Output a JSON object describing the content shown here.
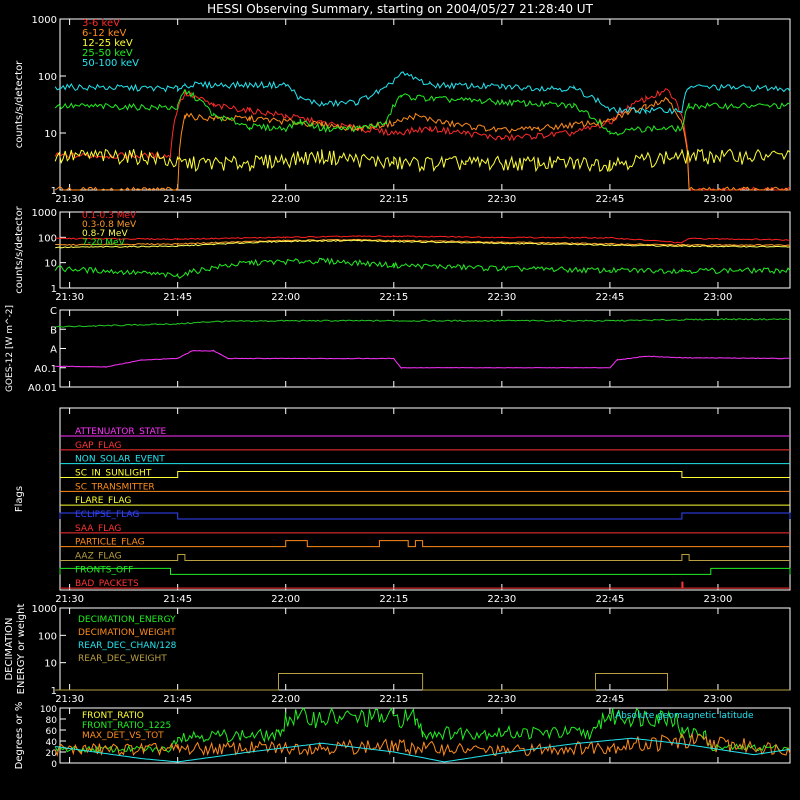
{
  "title": "HESSI Observing Summary, starting on 2004/05/27 21:28:40 UT",
  "time_labels": [
    "21:30",
    "21:45",
    "22:00",
    "22:15",
    "22:30",
    "22:45",
    "23:00"
  ],
  "colors": {
    "3-6": "#ff2a2a",
    "6-12": "#ff8c1a",
    "12-25": "#ffff33",
    "25-50": "#22ee22",
    "50-100": "#22e6f0",
    "hi1": "#ff2020",
    "hi2": "#ff9a2a",
    "hi3": "#ffff55",
    "hi4": "#22ee22",
    "goes_long": "#22cc22",
    "goes_short": "#ff33ff",
    "magenta": "#ff33ff",
    "red": "#ff3333",
    "cyan": "#22e6f0",
    "yellow": "#ffff33",
    "orange": "#ff8c1a",
    "blue": "#3344ff",
    "green": "#22ee22",
    "olive": "#b8a040"
  },
  "chart_data": [
    {
      "type": "line",
      "ylabel": "counts/s/detector",
      "yscale": "log",
      "ylim": [
        1,
        1000
      ],
      "ytick_labels": [
        "1",
        "10",
        "100",
        "1000"
      ],
      "xlim": [
        "21:28:40",
        "23:10:00"
      ],
      "legend": [
        "3-6 keV",
        "6-12 keV",
        "12-25 keV",
        "25-50 keV",
        "50-100 keV"
      ],
      "series": [
        {
          "name": "3-6 keV",
          "color_key": "3-6",
          "points": [
            [
              "21:28",
              4
            ],
            [
              "21:44",
              4
            ],
            [
              "21:46",
              50
            ],
            [
              "21:50",
              30
            ],
            [
              "21:55",
              25
            ],
            [
              "22:00",
              20
            ],
            [
              "22:05",
              15
            ],
            [
              "22:10",
              12
            ],
            [
              "22:15",
              10
            ],
            [
              "22:20",
              12
            ],
            [
              "22:25",
              10
            ],
            [
              "22:30",
              8
            ],
            [
              "22:35",
              9
            ],
            [
              "22:40",
              10
            ],
            [
              "22:45",
              15
            ],
            [
              "22:50",
              40
            ],
            [
              "22:53",
              55
            ],
            [
              "22:56",
              1
            ],
            [
              "23:10",
              1
            ]
          ]
        },
        {
          "name": "6-12 keV",
          "color_key": "6-12",
          "points": [
            [
              "21:28",
              1
            ],
            [
              "21:45",
              1
            ],
            [
              "21:46",
              20
            ],
            [
              "21:50",
              18
            ],
            [
              "21:55",
              18
            ],
            [
              "22:00",
              16
            ],
            [
              "22:05",
              14
            ],
            [
              "22:10",
              12
            ],
            [
              "22:15",
              15
            ],
            [
              "22:18",
              20
            ],
            [
              "22:22",
              15
            ],
            [
              "22:30",
              11
            ],
            [
              "22:35",
              12
            ],
            [
              "22:40",
              14
            ],
            [
              "22:45",
              16
            ],
            [
              "22:50",
              30
            ],
            [
              "22:53",
              40
            ],
            [
              "22:56",
              1
            ],
            [
              "23:10",
              1
            ]
          ]
        },
        {
          "name": "12-25 keV",
          "color_key": "12-25",
          "points": [
            [
              "21:28",
              4
            ],
            [
              "21:40",
              4
            ],
            [
              "21:45",
              3
            ],
            [
              "21:55",
              3
            ],
            [
              "22:05",
              4
            ],
            [
              "22:15",
              3
            ],
            [
              "22:25",
              3
            ],
            [
              "22:35",
              3
            ],
            [
              "22:45",
              3
            ],
            [
              "22:55",
              4
            ],
            [
              "23:10",
              4
            ]
          ]
        },
        {
          "name": "25-50 keV",
          "color_key": "25-50",
          "points": [
            [
              "21:28",
              30
            ],
            [
              "21:45",
              28
            ],
            [
              "21:46",
              55
            ],
            [
              "21:50",
              20
            ],
            [
              "21:55",
              13
            ],
            [
              "22:00",
              12
            ],
            [
              "22:02",
              16
            ],
            [
              "22:05",
              12
            ],
            [
              "22:10",
              12
            ],
            [
              "22:14",
              15
            ],
            [
              "22:16",
              45
            ],
            [
              "22:20",
              40
            ],
            [
              "22:30",
              35
            ],
            [
              "22:40",
              30
            ],
            [
              "22:45",
              10
            ],
            [
              "22:50",
              12
            ],
            [
              "22:55",
              12
            ],
            [
              "22:56",
              30
            ],
            [
              "23:10",
              30
            ]
          ]
        },
        {
          "name": "50-100 keV",
          "color_key": "50-100",
          "points": [
            [
              "21:28",
              65
            ],
            [
              "21:45",
              60
            ],
            [
              "21:46",
              70
            ],
            [
              "21:55",
              70
            ],
            [
              "22:00",
              70
            ],
            [
              "22:02",
              40
            ],
            [
              "22:05",
              32
            ],
            [
              "22:10",
              35
            ],
            [
              "22:14",
              60
            ],
            [
              "22:16",
              110
            ],
            [
              "22:20",
              70
            ],
            [
              "22:30",
              65
            ],
            [
              "22:40",
              60
            ],
            [
              "22:45",
              25
            ],
            [
              "22:50",
              25
            ],
            [
              "22:55",
              25
            ],
            [
              "22:56",
              65
            ],
            [
              "23:10",
              60
            ]
          ]
        }
      ]
    },
    {
      "type": "line",
      "ylabel": "counts/s/detector",
      "yscale": "log",
      "ylim": [
        1,
        1000
      ],
      "ytick_labels": [
        "1",
        "10",
        "100",
        "1000"
      ],
      "legend": [
        "0.1-0.3 MeV",
        "0.3-0.8 MeV",
        "0.8-7 MeV",
        "7-20 MeV"
      ],
      "series": [
        {
          "name": "0.1-0.3 MeV",
          "color_key": "hi1",
          "points": [
            [
              "21:28",
              90
            ],
            [
              "21:45",
              85
            ],
            [
              "22:00",
              100
            ],
            [
              "22:10",
              110
            ],
            [
              "22:15",
              110
            ],
            [
              "22:30",
              100
            ],
            [
              "22:45",
              95
            ],
            [
              "22:55",
              60
            ],
            [
              "22:56",
              90
            ],
            [
              "23:10",
              80
            ]
          ]
        },
        {
          "name": "0.3-0.8 MeV",
          "color_key": "hi2",
          "points": [
            [
              "21:28",
              50
            ],
            [
              "21:45",
              55
            ],
            [
              "22:00",
              75
            ],
            [
              "22:10",
              80
            ],
            [
              "22:15",
              75
            ],
            [
              "22:30",
              65
            ],
            [
              "22:45",
              55
            ],
            [
              "22:55",
              50
            ],
            [
              "23:10",
              50
            ]
          ]
        },
        {
          "name": "0.8-7 MeV",
          "color_key": "hi3",
          "points": [
            [
              "21:28",
              40
            ],
            [
              "21:45",
              45
            ],
            [
              "22:00",
              70
            ],
            [
              "22:10",
              75
            ],
            [
              "22:15",
              68
            ],
            [
              "22:30",
              58
            ],
            [
              "22:45",
              50
            ],
            [
              "22:55",
              45
            ],
            [
              "23:10",
              42
            ]
          ]
        },
        {
          "name": "7-20 MeV",
          "color_key": "hi4",
          "points": [
            [
              "21:28",
              6
            ],
            [
              "21:45",
              3
            ],
            [
              "21:55",
              10
            ],
            [
              "22:05",
              12
            ],
            [
              "22:15",
              8
            ],
            [
              "22:30",
              6
            ],
            [
              "22:45",
              5
            ],
            [
              "22:55",
              5
            ],
            [
              "23:10",
              5
            ]
          ]
        }
      ]
    },
    {
      "type": "line",
      "ylabel": "GOES-12 [W m^-2]",
      "ytick_labels": [
        "C",
        "B",
        "A",
        "A0.1",
        "A0.01"
      ],
      "series": [
        {
          "name": "long",
          "color_key": "goes_long",
          "points": [
            [
              "21:28",
              0.78
            ],
            [
              "21:45",
              0.82
            ],
            [
              "21:50",
              0.85
            ],
            [
              "22:00",
              0.86
            ],
            [
              "22:15",
              0.86
            ],
            [
              "22:45",
              0.86
            ],
            [
              "23:00",
              0.88
            ],
            [
              "23:10",
              0.88
            ]
          ]
        },
        {
          "name": "short",
          "color_key": "goes_short",
          "points": [
            [
              "21:28",
              0.27
            ],
            [
              "21:35",
              0.26
            ],
            [
              "21:40",
              0.35
            ],
            [
              "21:45",
              0.37
            ],
            [
              "21:47",
              0.47
            ],
            [
              "21:50",
              0.47
            ],
            [
              "21:52",
              0.37
            ],
            [
              "22:15",
              0.37
            ],
            [
              "22:16",
              0.25
            ],
            [
              "22:45",
              0.25
            ],
            [
              "22:46",
              0.35
            ],
            [
              "22:50",
              0.4
            ],
            [
              "22:55",
              0.38
            ],
            [
              "23:10",
              0.37
            ]
          ]
        }
      ]
    },
    {
      "type": "flags",
      "ylabel": "Flags",
      "flags": [
        {
          "name": "ATTENUATOR_STATE",
          "color_key": "magenta",
          "segments": []
        },
        {
          "name": "GAP_FLAG",
          "color_key": "red",
          "segments": []
        },
        {
          "name": "NON_SOLAR_EVENT",
          "color_key": "cyan",
          "segments": []
        },
        {
          "name": "SC_IN_SUNLIGHT",
          "color_key": "yellow",
          "segments": [
            [
              "21:45",
              "22:55"
            ]
          ]
        },
        {
          "name": "SC_TRANSMITTER",
          "color_key": "orange",
          "segments": []
        },
        {
          "name": "FLARE_FLAG",
          "color_key": "yellow",
          "segments": []
        },
        {
          "name": "ECLIPSE_FLAG",
          "color_key": "blue",
          "segments": [
            [
              "21:28",
              "21:45"
            ],
            [
              "22:55",
              "23:10"
            ]
          ]
        },
        {
          "name": "SAA_FLAG",
          "color_key": "red",
          "segments": []
        },
        {
          "name": "PARTICLE_FLAG",
          "color_key": "orange",
          "segments": [
            [
              "22:00",
              "22:03"
            ],
            [
              "22:13",
              "22:17"
            ],
            [
              "22:18",
              "22:19"
            ]
          ]
        },
        {
          "name": "AAZ_FLAG",
          "color_key": "olive",
          "segments": [
            [
              "21:45",
              "21:46"
            ],
            [
              "22:55",
              "22:56"
            ]
          ]
        },
        {
          "name": "FRONTS_OFF",
          "color_key": "green",
          "segments": [
            [
              "21:28",
              "21:44"
            ],
            [
              "22:59",
              "23:10"
            ]
          ]
        },
        {
          "name": "BAD_PACKETS",
          "color_key": "red",
          "segments": [
            [
              "22:55",
              "22:55"
            ]
          ]
        }
      ]
    },
    {
      "type": "line",
      "ylabel": "DECIMATION ENERGY or weight",
      "yscale": "log",
      "ylim": [
        1,
        1000
      ],
      "ytick_labels": [
        "1",
        "10",
        "100",
        "1000"
      ],
      "legend": [
        "DECIMATION_ENERGY",
        "DECIMATION_WEIGHT",
        "REAR_DEC_CHAN/128",
        "REAR_DEC_WEIGHT"
      ],
      "series": [
        {
          "name": "REAR_DEC_WEIGHT",
          "color_key": "olive",
          "points": [
            [
              "21:28",
              1
            ],
            [
              "21:59",
              1
            ],
            [
              "21:59",
              4
            ],
            [
              "22:19",
              4
            ],
            [
              "22:19",
              1
            ],
            [
              "22:43",
              1
            ],
            [
              "22:43",
              4
            ],
            [
              "22:53",
              4
            ],
            [
              "22:53",
              1
            ],
            [
              "23:10",
              1
            ]
          ]
        }
      ]
    },
    {
      "type": "line",
      "ylabel": "Degrees or %",
      "ylim": [
        0,
        100
      ],
      "ytick_labels": [
        "0",
        "20",
        "40",
        "60",
        "80",
        "100"
      ],
      "legend": [
        "FRONT_RATIO",
        "FRONT_RATIO_1225",
        "MAX_DET_VS_TOT"
      ],
      "annotation": "Absolute geomagnetic latitude",
      "series": [
        {
          "name": "FRONT_RATIO_1225",
          "color_key": "green",
          "points": [
            [
              "21:28",
              25
            ],
            [
              "21:44",
              25
            ],
            [
              "21:45",
              50
            ],
            [
              "21:59",
              50
            ],
            [
              "22:00",
              82
            ],
            [
              "22:18",
              82
            ],
            [
              "22:19",
              55
            ],
            [
              "22:43",
              55
            ],
            [
              "22:44",
              85
            ],
            [
              "22:54",
              85
            ],
            [
              "22:55",
              55
            ],
            [
              "22:58",
              55
            ],
            [
              "22:59",
              28
            ],
            [
              "23:10",
              28
            ]
          ]
        },
        {
          "name": "MAX_DET_VS_TOT",
          "color_key": "orange",
          "points": [
            [
              "21:28",
              25
            ],
            [
              "21:45",
              25
            ],
            [
              "22:00",
              28
            ],
            [
              "22:15",
              30
            ],
            [
              "22:30",
              22
            ],
            [
              "22:45",
              30
            ],
            [
              "22:55",
              40
            ],
            [
              "23:10",
              25
            ]
          ]
        },
        {
          "name": "Absolute geomagnetic latitude",
          "color_key": "cyan",
          "points": [
            [
              "21:28",
              30
            ],
            [
              "21:40",
              8
            ],
            [
              "21:45",
              2
            ],
            [
              "21:55",
              20
            ],
            [
              "22:05",
              36
            ],
            [
              "22:15",
              20
            ],
            [
              "22:22",
              2
            ],
            [
              "22:30",
              18
            ],
            [
              "22:40",
              35
            ],
            [
              "22:48",
              45
            ],
            [
              "22:55",
              35
            ],
            [
              "23:05",
              15
            ],
            [
              "23:10",
              25
            ]
          ]
        }
      ]
    }
  ]
}
